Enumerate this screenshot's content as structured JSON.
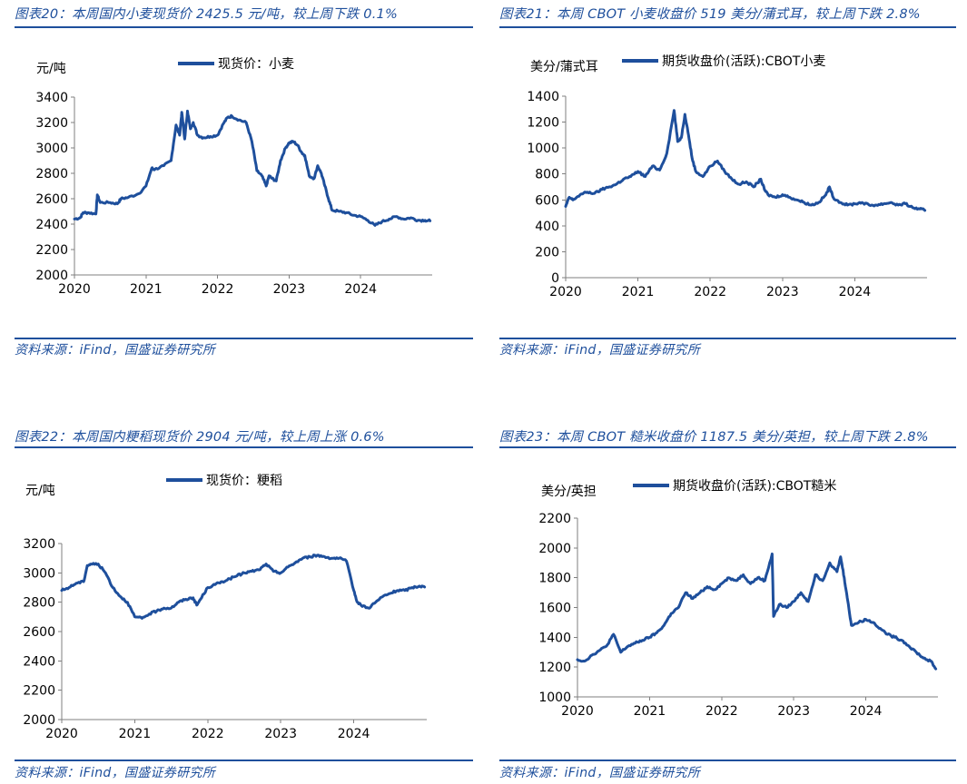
{
  "source_text": "资料来源：iFind，国盛证券研究所",
  "line_color": "#1e4f9c",
  "chart_data": [
    {
      "id": "fig20",
      "type": "line",
      "title": "图表20：本周国内小麦现货价 2425.5 元/吨，较上周下跌 0.1%",
      "legend": "现货价：小麦",
      "ylabel": "元/吨",
      "ylim": [
        2000,
        3400
      ],
      "yticks": [
        2000,
        2200,
        2400,
        2600,
        2800,
        3000,
        3200,
        3400
      ],
      "xlim": [
        2020.0,
        2025.0
      ],
      "xticks": [
        "2020",
        "2021",
        "2022",
        "2023",
        "2024"
      ],
      "x": [
        2020.0,
        2020.08,
        2020.12,
        2020.2,
        2020.3,
        2020.32,
        2020.36,
        2020.5,
        2020.6,
        2020.65,
        2020.75,
        2020.9,
        2021.0,
        2021.08,
        2021.12,
        2021.25,
        2021.35,
        2021.42,
        2021.47,
        2021.5,
        2021.54,
        2021.58,
        2021.62,
        2021.66,
        2021.72,
        2021.8,
        2021.9,
        2022.0,
        2022.08,
        2022.14,
        2022.2,
        2022.3,
        2022.4,
        2022.48,
        2022.55,
        2022.62,
        2022.68,
        2022.72,
        2022.76,
        2022.82,
        2022.88,
        2022.95,
        2023.0,
        2023.06,
        2023.12,
        2023.18,
        2023.22,
        2023.28,
        2023.35,
        2023.4,
        2023.45,
        2023.5,
        2023.55,
        2023.6,
        2023.7,
        2023.8,
        2023.9,
        2024.0,
        2024.1,
        2024.2,
        2024.3,
        2024.4,
        2024.5,
        2024.6,
        2024.7,
        2024.8,
        2024.9,
        2024.97
      ],
      "y": [
        2440,
        2450,
        2490,
        2490,
        2480,
        2630,
        2570,
        2570,
        2560,
        2600,
        2610,
        2640,
        2700,
        2840,
        2830,
        2860,
        2900,
        3180,
        3100,
        3280,
        3070,
        3290,
        3150,
        3200,
        3100,
        3080,
        3090,
        3100,
        3190,
        3240,
        3250,
        3220,
        3200,
        3050,
        2820,
        2780,
        2700,
        2780,
        2760,
        2740,
        2900,
        3000,
        3040,
        3050,
        3020,
        2960,
        2940,
        2780,
        2760,
        2860,
        2800,
        2700,
        2600,
        2510,
        2500,
        2490,
        2470,
        2460,
        2430,
        2390,
        2420,
        2440,
        2460,
        2440,
        2450,
        2430,
        2430,
        2425.5
      ]
    },
    {
      "id": "fig21",
      "type": "line",
      "title": "图表21：本周 CBOT 小麦收盘价 519 美分/蒲式耳，较上周下跌 2.8%",
      "legend": "期货收盘价(活跃):CBOT小麦",
      "ylabel": "美分/蒲式耳",
      "ylim": [
        0,
        1400
      ],
      "yticks": [
        0,
        200,
        400,
        600,
        800,
        1000,
        1200,
        1400
      ],
      "xlim": [
        2020.0,
        2025.0
      ],
      "xticks": [
        "2020",
        "2021",
        "2022",
        "2023",
        "2024"
      ],
      "x": [
        2020.0,
        2020.05,
        2020.1,
        2020.2,
        2020.3,
        2020.4,
        2020.5,
        2020.6,
        2020.7,
        2020.8,
        2020.9,
        2021.0,
        2021.1,
        2021.2,
        2021.3,
        2021.4,
        2021.5,
        2021.55,
        2021.6,
        2021.65,
        2021.7,
        2021.75,
        2021.8,
        2021.9,
        2022.0,
        2022.1,
        2022.2,
        2022.3,
        2022.4,
        2022.5,
        2022.6,
        2022.7,
        2022.75,
        2022.8,
        2022.9,
        2023.0,
        2023.1,
        2023.2,
        2023.3,
        2023.4,
        2023.5,
        2023.6,
        2023.65,
        2023.7,
        2023.8,
        2023.9,
        2024.0,
        2024.1,
        2024.2,
        2024.3,
        2024.4,
        2024.5,
        2024.6,
        2024.7,
        2024.8,
        2024.9,
        2024.97
      ],
      "y": [
        550,
        620,
        600,
        640,
        660,
        650,
        680,
        700,
        720,
        760,
        780,
        820,
        780,
        860,
        830,
        960,
        1290,
        1050,
        1080,
        1260,
        1100,
        920,
        820,
        780,
        860,
        900,
        820,
        760,
        720,
        740,
        700,
        760,
        680,
        640,
        620,
        640,
        620,
        600,
        580,
        560,
        580,
        640,
        700,
        620,
        580,
        560,
        570,
        580,
        560,
        560,
        570,
        580,
        560,
        570,
        540,
        530,
        519
      ]
    },
    {
      "id": "fig22",
      "type": "line",
      "title": "图表22：本周国内粳稻现货价 2904 元/吨，较上周上涨 0.6%",
      "legend": "现货价：粳稻",
      "ylabel": "元/吨",
      "ylim": [
        2000,
        3200
      ],
      "yticks": [
        2000,
        2200,
        2400,
        2600,
        2800,
        3000,
        3200
      ],
      "xlim": [
        2020.0,
        2025.0
      ],
      "xticks": [
        "2020",
        "2021",
        "2022",
        "2023",
        "2024"
      ],
      "x": [
        2020.0,
        2020.1,
        2020.2,
        2020.3,
        2020.35,
        2020.4,
        2020.5,
        2020.6,
        2020.7,
        2020.8,
        2020.9,
        2021.0,
        2021.1,
        2021.2,
        2021.3,
        2021.4,
        2021.5,
        2021.6,
        2021.7,
        2021.8,
        2021.85,
        2021.9,
        2022.0,
        2022.1,
        2022.2,
        2022.3,
        2022.4,
        2022.5,
        2022.6,
        2022.7,
        2022.8,
        2022.9,
        2023.0,
        2023.1,
        2023.2,
        2023.3,
        2023.4,
        2023.5,
        2023.6,
        2023.7,
        2023.8,
        2023.9,
        2024.0,
        2024.05,
        2024.1,
        2024.2,
        2024.3,
        2024.4,
        2024.5,
        2024.6,
        2024.7,
        2024.8,
        2024.9,
        2024.97
      ],
      "y": [
        2880,
        2900,
        2930,
        2940,
        3050,
        3060,
        3060,
        3000,
        2900,
        2840,
        2800,
        2700,
        2690,
        2720,
        2740,
        2760,
        2760,
        2800,
        2820,
        2830,
        2780,
        2820,
        2900,
        2920,
        2940,
        2960,
        2980,
        3000,
        3010,
        3020,
        3060,
        3010,
        3000,
        3040,
        3070,
        3100,
        3110,
        3120,
        3110,
        3100,
        3100,
        3080,
        2880,
        2800,
        2780,
        2760,
        2800,
        2840,
        2860,
        2880,
        2880,
        2900,
        2910,
        2904
      ]
    },
    {
      "id": "fig23",
      "type": "line",
      "title": "图表23：本周 CBOT 糙米收盘价 1187.5 美分/英担，较上周下跌 2.8%",
      "legend": "期货收盘价(活跃):CBOT糙米",
      "ylabel": "美分/英担",
      "ylim": [
        1000,
        2200
      ],
      "yticks": [
        1000,
        1200,
        1400,
        1600,
        1800,
        2000,
        2200
      ],
      "xlim": [
        2020.0,
        2025.0
      ],
      "xticks": [
        "2020",
        "2021",
        "2022",
        "2023",
        "2024"
      ],
      "x": [
        2020.0,
        2020.1,
        2020.2,
        2020.3,
        2020.4,
        2020.5,
        2020.6,
        2020.7,
        2020.8,
        2020.9,
        2021.0,
        2021.1,
        2021.2,
        2021.3,
        2021.4,
        2021.5,
        2021.6,
        2021.7,
        2021.8,
        2021.9,
        2022.0,
        2022.1,
        2022.2,
        2022.3,
        2022.4,
        2022.5,
        2022.6,
        2022.7,
        2022.72,
        2022.8,
        2022.9,
        2023.0,
        2023.1,
        2023.2,
        2023.3,
        2023.4,
        2023.5,
        2023.6,
        2023.65,
        2023.7,
        2023.75,
        2023.8,
        2023.9,
        2024.0,
        2024.1,
        2024.2,
        2024.3,
        2024.4,
        2024.5,
        2024.6,
        2024.7,
        2024.8,
        2024.9,
        2024.97
      ],
      "y": [
        1250,
        1240,
        1280,
        1310,
        1340,
        1420,
        1300,
        1340,
        1360,
        1380,
        1400,
        1430,
        1480,
        1560,
        1600,
        1700,
        1660,
        1700,
        1740,
        1720,
        1760,
        1800,
        1780,
        1820,
        1760,
        1800,
        1780,
        1960,
        1540,
        1620,
        1600,
        1640,
        1700,
        1640,
        1820,
        1780,
        1900,
        1840,
        1940,
        1800,
        1640,
        1480,
        1500,
        1520,
        1500,
        1460,
        1420,
        1400,
        1380,
        1340,
        1300,
        1260,
        1240,
        1187.5
      ]
    }
  ]
}
